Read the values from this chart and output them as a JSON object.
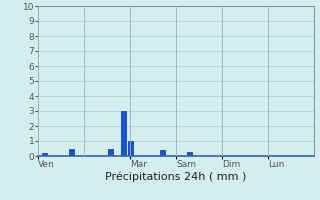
{
  "title": "",
  "xlabel": "Précipitations 24h ( mm )",
  "ylabel": "",
  "background_color": "#d4eef0",
  "bar_color": "#1155dd",
  "bar_edge_color": "#0033bb",
  "grid_color": "#aacccc",
  "tick_label_color": "#555555",
  "ylim": [
    0,
    10
  ],
  "yticks": [
    0,
    1,
    2,
    3,
    4,
    5,
    6,
    7,
    8,
    9,
    10
  ],
  "day_boundaries": [
    0,
    7,
    14,
    21,
    28,
    35
  ],
  "day_labels": [
    {
      "label": "Ven",
      "x": 0
    },
    {
      "label": "Mar",
      "x": 14
    },
    {
      "label": "Sam",
      "x": 21
    },
    {
      "label": "Dim",
      "x": 28
    },
    {
      "label": "Lun",
      "x": 35
    }
  ],
  "bar_positions": [
    1,
    5,
    11,
    13,
    14,
    19,
    23,
    29
  ],
  "bar_values": [
    0.2,
    0.5,
    0.5,
    3.0,
    1.0,
    0.4,
    0.3,
    0.0
  ],
  "n_bars": 42,
  "bar_width": 0.75
}
